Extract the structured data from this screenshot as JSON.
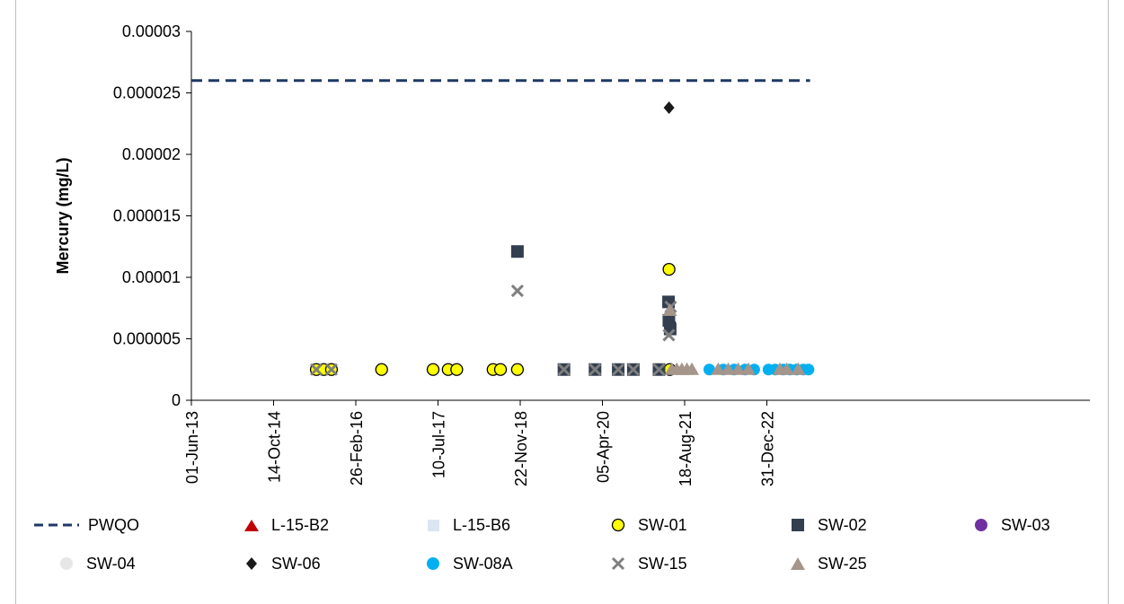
{
  "chart_data": {
    "type": "scatter",
    "title": "",
    "xlabel": "",
    "ylabel": "Mercury (mg/L)",
    "ylim": [
      0,
      3e-05
    ],
    "yticks": [
      0,
      5e-06,
      1e-05,
      1.5e-05,
      2e-05,
      2.5e-05,
      3e-05
    ],
    "ytick_labels": [
      "0",
      "0.000005",
      "0.00001",
      "0.000015",
      "0.00002",
      "0.000025",
      "0.00003"
    ],
    "xlim": [
      "2013-06-01",
      "2023-09-20"
    ],
    "xtick_labels": [
      "01-Jun-13",
      "14-Oct-14",
      "26-Feb-16",
      "10-Jul-17",
      "22-Nov-18",
      "05-Apr-20",
      "18-Aug-21",
      "31-Dec-22"
    ],
    "xtick_dates": [
      "2013-06-01",
      "2014-10-14",
      "2016-02-26",
      "2017-07-10",
      "2018-11-22",
      "2020-04-05",
      "2021-08-18",
      "2022-12-31"
    ],
    "grid": false,
    "legend_position": "bottom",
    "series": [
      {
        "name": "PWQO",
        "kind": "line",
        "style": "dashed",
        "color": "#1f3864",
        "points": [
          {
            "x": "2013-06-01",
            "y": 2.6e-05
          },
          {
            "x": "2023-09-20",
            "y": 2.6e-05
          }
        ]
      },
      {
        "name": "L-15-B2",
        "marker": "triangle",
        "color": "#c00000",
        "points": []
      },
      {
        "name": "L-15-B6",
        "marker": "square",
        "color": "#dce6f2",
        "points": []
      },
      {
        "name": "SW-01",
        "marker": "circle-outline",
        "color": "#ffff00",
        "points": [
          {
            "x": "2015-07-01",
            "y": 2.5e-06
          },
          {
            "x": "2015-08-15",
            "y": 2.5e-06
          },
          {
            "x": "2015-10-01",
            "y": 2.5e-06
          },
          {
            "x": "2016-08-01",
            "y": 2.5e-06
          },
          {
            "x": "2017-06-10",
            "y": 2.5e-06
          },
          {
            "x": "2017-09-10",
            "y": 2.5e-06
          },
          {
            "x": "2017-11-01",
            "y": 2.5e-06
          },
          {
            "x": "2018-06-10",
            "y": 2.5e-06
          },
          {
            "x": "2018-07-25",
            "y": 2.5e-06
          },
          {
            "x": "2018-11-05",
            "y": 2.5e-06
          },
          {
            "x": "2021-05-15",
            "y": 1.065e-05
          },
          {
            "x": "2021-05-18",
            "y": 6.2e-06
          },
          {
            "x": "2021-05-20",
            "y": 2.5e-06
          }
        ]
      },
      {
        "name": "SW-02",
        "marker": "square",
        "color": "#333f4f",
        "points": [
          {
            "x": "2018-11-05",
            "y": 1.21e-05
          },
          {
            "x": "2021-05-12",
            "y": 8e-06
          },
          {
            "x": "2021-05-14",
            "y": 6.5e-06
          },
          {
            "x": "2021-05-22",
            "y": 5.8e-06
          },
          {
            "x": "2019-08-15",
            "y": 2.5e-06
          },
          {
            "x": "2020-02-20",
            "y": 2.5e-06
          },
          {
            "x": "2020-07-10",
            "y": 2.5e-06
          },
          {
            "x": "2020-10-10",
            "y": 2.5e-06
          },
          {
            "x": "2021-03-15",
            "y": 2.5e-06
          }
        ]
      },
      {
        "name": "SW-03",
        "marker": "circle",
        "color": "#7030a0",
        "points": []
      },
      {
        "name": "SW-04",
        "marker": "circle",
        "color": "#e7e6e6",
        "points": []
      },
      {
        "name": "SW-06",
        "marker": "diamond",
        "color": "#1a1a1a",
        "points": [
          {
            "x": "2021-05-15",
            "y": 2.38e-05
          }
        ]
      },
      {
        "name": "SW-08A",
        "marker": "circle",
        "color": "#00b0f0",
        "points": [
          {
            "x": "2022-01-15",
            "y": 2.5e-06
          },
          {
            "x": "2022-04-10",
            "y": 2.5e-06
          },
          {
            "x": "2022-06-15",
            "y": 2.5e-06
          },
          {
            "x": "2022-08-20",
            "y": 2.5e-06
          },
          {
            "x": "2022-10-15",
            "y": 2.5e-06
          },
          {
            "x": "2023-01-10",
            "y": 2.5e-06
          },
          {
            "x": "2023-02-20",
            "y": 2.5e-06
          },
          {
            "x": "2023-04-10",
            "y": 2.5e-06
          },
          {
            "x": "2023-05-20",
            "y": 2.5e-06
          },
          {
            "x": "2023-06-30",
            "y": 2.5e-06
          },
          {
            "x": "2023-08-10",
            "y": 2.5e-06
          },
          {
            "x": "2023-09-10",
            "y": 2.5e-06
          }
        ]
      },
      {
        "name": "SW-15",
        "marker": "x",
        "color": "#7f7f7f",
        "points": [
          {
            "x": "2018-11-05",
            "y": 8.9e-06
          },
          {
            "x": "2021-05-14",
            "y": 5.3e-06
          },
          {
            "x": "2021-05-25",
            "y": 7.6e-06
          },
          {
            "x": "2019-08-15",
            "y": 2.5e-06
          },
          {
            "x": "2020-02-20",
            "y": 2.5e-06
          },
          {
            "x": "2020-07-10",
            "y": 2.5e-06
          },
          {
            "x": "2020-10-10",
            "y": 2.5e-06
          },
          {
            "x": "2021-03-15",
            "y": 2.5e-06
          },
          {
            "x": "2015-07-01",
            "y": 2.5e-06
          },
          {
            "x": "2015-10-01",
            "y": 2.5e-06
          }
        ]
      },
      {
        "name": "SW-25",
        "marker": "triangle",
        "color": "#a5958a",
        "points": [
          {
            "x": "2021-05-20",
            "y": 7.3e-06
          },
          {
            "x": "2021-06-01",
            "y": 2.5e-06
          },
          {
            "x": "2021-07-01",
            "y": 2.5e-06
          },
          {
            "x": "2021-08-01",
            "y": 2.5e-06
          },
          {
            "x": "2021-09-01",
            "y": 2.5e-06
          },
          {
            "x": "2021-10-01",
            "y": 2.5e-06
          },
          {
            "x": "2022-03-10",
            "y": 2.5e-06
          },
          {
            "x": "2022-05-10",
            "y": 2.5e-06
          },
          {
            "x": "2022-07-10",
            "y": 2.5e-06
          },
          {
            "x": "2022-09-10",
            "y": 2.5e-06
          },
          {
            "x": "2023-03-20",
            "y": 2.5e-06
          },
          {
            "x": "2023-05-01",
            "y": 2.5e-06
          },
          {
            "x": "2023-07-10",
            "y": 2.5e-06
          }
        ]
      }
    ]
  }
}
